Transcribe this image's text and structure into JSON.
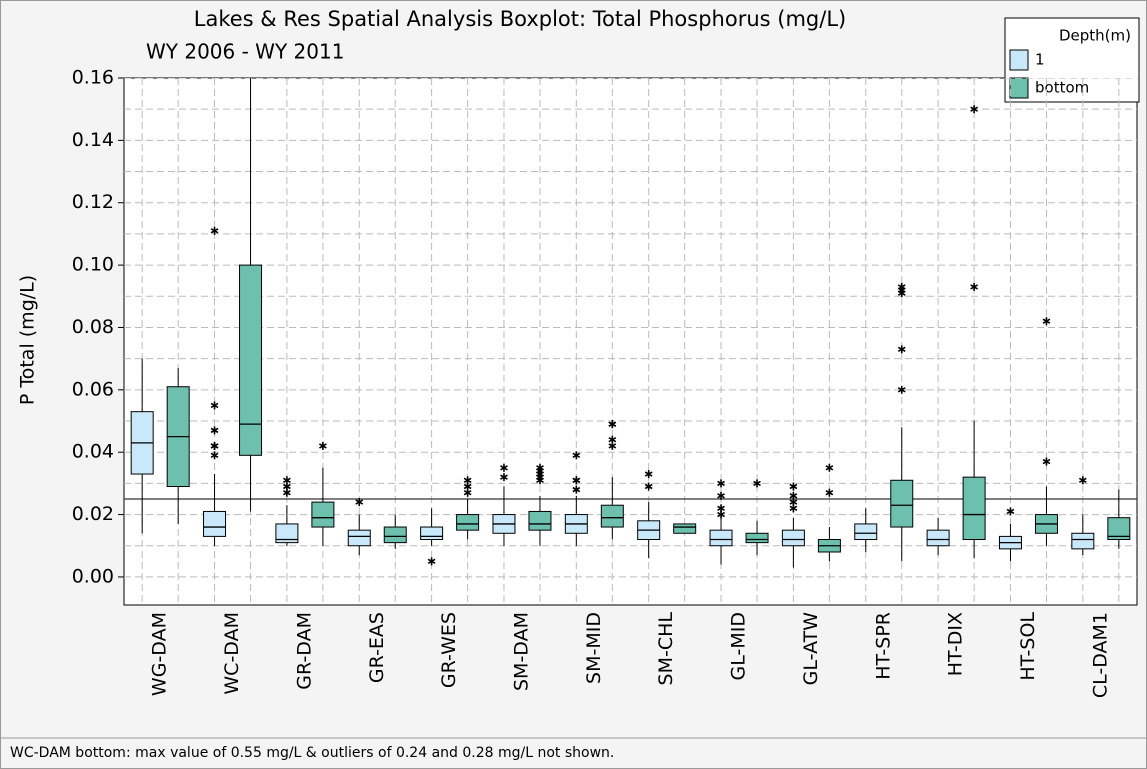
{
  "chart_data": {
    "type": "boxplot",
    "title": "Lakes & Res Spatial Analysis Boxplot: Total Phosphorus (mg/L)",
    "subtitle": "WY 2006 - WY 2011",
    "y_label": "P Total (mg/L)",
    "legend_title": "Depth(m)",
    "legend_position": "top-right",
    "footnote": "WC-DAM bottom:  max value of 0.55 mg/L & outliers of 0.24 and 0.28 mg/L not shown.",
    "categories": [
      "WG-DAM",
      "WC-DAM",
      "GR-DAM",
      "GR-EAS",
      "GR-WES",
      "SM-DAM",
      "SM-MID",
      "SM-CHL",
      "GL-MID",
      "GL-ATW",
      "HT-SPR",
      "HT-DIX",
      "HT-SOL",
      "CL-DAM1"
    ],
    "ylim": [
      -0.009,
      0.16
    ],
    "yticks": [
      {
        "value": 0,
        "label": "0.00"
      },
      0.02,
      0.04,
      0.06,
      0.08,
      {
        "value": 0.1,
        "label": "0.10"
      },
      0.12,
      0.14,
      0.16
    ],
    "grid": true,
    "y_minor_gridlines": [
      0.01,
      0.03,
      0.05,
      0.07,
      0.09,
      0.11,
      0.13,
      0.15
    ],
    "reference_line": 0.025,
    "series": [
      {
        "name": "1",
        "color": "#c9e9fb",
        "boxes": [
          {
            "low": 0.014,
            "q1": 0.033,
            "median": 0.043,
            "q3": 0.053,
            "high": 0.07,
            "outliers": []
          },
          {
            "low": 0.01,
            "q1": 0.013,
            "median": 0.016,
            "q3": 0.021,
            "high": 0.033,
            "outliers": [
              0.039,
              0.042,
              0.042,
              0.047,
              0.055,
              0.111
            ]
          },
          {
            "low": 0.01,
            "q1": 0.011,
            "median": 0.012,
            "q3": 0.017,
            "high": 0.023,
            "outliers": [
              0.027,
              0.029,
              0.031
            ]
          },
          {
            "low": 0.007,
            "q1": 0.01,
            "median": 0.013,
            "q3": 0.015,
            "high": 0.02,
            "outliers": [
              0.024
            ]
          },
          {
            "low": 0.01,
            "q1": 0.012,
            "median": 0.013,
            "q3": 0.016,
            "high": 0.022,
            "outliers": [
              0.005
            ]
          },
          {
            "low": 0.01,
            "q1": 0.014,
            "median": 0.017,
            "q3": 0.02,
            "high": 0.029,
            "outliers": [
              0.032,
              0.035
            ]
          },
          {
            "low": 0.01,
            "q1": 0.014,
            "median": 0.017,
            "q3": 0.02,
            "high": 0.026,
            "outliers": [
              0.028,
              0.031,
              0.031,
              0.039
            ]
          },
          {
            "low": 0.006,
            "q1": 0.012,
            "median": 0.015,
            "q3": 0.018,
            "high": 0.024,
            "outliers": [
              0.029,
              0.033
            ]
          },
          {
            "low": 0.004,
            "q1": 0.01,
            "median": 0.012,
            "q3": 0.015,
            "high": 0.019,
            "outliers": [
              0.02,
              0.022,
              0.026,
              0.03
            ]
          },
          {
            "low": 0.003,
            "q1": 0.01,
            "median": 0.012,
            "q3": 0.015,
            "high": 0.019,
            "outliers": [
              0.022,
              0.024,
              0.026,
              0.029
            ]
          },
          {
            "low": 0.008,
            "q1": 0.012,
            "median": 0.014,
            "q3": 0.017,
            "high": 0.022,
            "outliers": []
          },
          {
            "low": 0.007,
            "q1": 0.01,
            "median": 0.012,
            "q3": 0.015,
            "high": 0.019,
            "outliers": []
          },
          {
            "low": 0.005,
            "q1": 0.009,
            "median": 0.011,
            "q3": 0.013,
            "high": 0.017,
            "outliers": [
              0.021
            ]
          },
          {
            "low": 0.007,
            "q1": 0.009,
            "median": 0.012,
            "q3": 0.014,
            "high": 0.02,
            "outliers": [
              0.031
            ]
          }
        ]
      },
      {
        "name": "bottom",
        "color": "#6cc0ad",
        "boxes": [
          {
            "low": 0.017,
            "q1": 0.029,
            "median": 0.045,
            "q3": 0.061,
            "high": 0.067,
            "outliers": []
          },
          {
            "low": 0.021,
            "q1": 0.039,
            "median": 0.049,
            "q3": 0.1,
            "high": 0.55,
            "outliers": []
          },
          {
            "low": 0.01,
            "q1": 0.016,
            "median": 0.019,
            "q3": 0.024,
            "high": 0.035,
            "outliers": [
              0.042
            ]
          },
          {
            "low": 0.009,
            "q1": 0.011,
            "median": 0.013,
            "q3": 0.016,
            "high": 0.02,
            "outliers": []
          },
          {
            "low": 0.012,
            "q1": 0.015,
            "median": 0.017,
            "q3": 0.02,
            "high": 0.025,
            "outliers": [
              0.027,
              0.029,
              0.031
            ]
          },
          {
            "low": 0.01,
            "q1": 0.015,
            "median": 0.017,
            "q3": 0.021,
            "high": 0.026,
            "outliers": [
              0.031,
              0.032,
              0.033,
              0.034,
              0.035
            ]
          },
          {
            "low": 0.012,
            "q1": 0.016,
            "median": 0.019,
            "q3": 0.023,
            "high": 0.032,
            "outliers": [
              0.042,
              0.044,
              0.049,
              0.049
            ]
          },
          {
            "low": 0.014,
            "q1": 0.014,
            "median": 0.016,
            "q3": 0.017,
            "high": 0.017,
            "outliers": []
          },
          {
            "low": 0.007,
            "q1": 0.011,
            "median": 0.012,
            "q3": 0.014,
            "high": 0.018,
            "outliers": [
              0.03
            ]
          },
          {
            "low": 0.005,
            "q1": 0.008,
            "median": 0.01,
            "q3": 0.012,
            "high": 0.016,
            "outliers": [
              0.027,
              0.035
            ]
          },
          {
            "low": 0.005,
            "q1": 0.016,
            "median": 0.023,
            "q3": 0.031,
            "high": 0.048,
            "outliers": [
              0.06,
              0.073,
              0.091,
              0.092,
              0.093
            ]
          },
          {
            "low": 0.006,
            "q1": 0.012,
            "median": 0.02,
            "q3": 0.032,
            "high": 0.05,
            "outliers": [
              0.093,
              0.15
            ]
          },
          {
            "low": 0.01,
            "q1": 0.014,
            "median": 0.017,
            "q3": 0.02,
            "high": 0.029,
            "outliers": [
              0.037,
              0.082
            ]
          },
          {
            "low": 0.009,
            "q1": 0.012,
            "median": 0.013,
            "q3": 0.019,
            "high": 0.028,
            "outliers": []
          }
        ]
      }
    ]
  }
}
